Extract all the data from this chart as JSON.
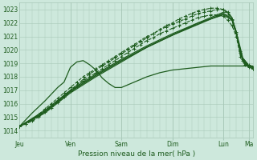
{
  "xlabel": "Pression niveau de la mer( hPa )",
  "ylim": [
    1013.5,
    1023.5
  ],
  "yticks": [
    1014,
    1015,
    1016,
    1017,
    1018,
    1019,
    1020,
    1021,
    1022,
    1023
  ],
  "day_labels": [
    "Jeu",
    "Ven",
    "Sam",
    "Dim",
    "Lun",
    "Ma"
  ],
  "day_positions": [
    0,
    48,
    96,
    144,
    192,
    216
  ],
  "bg_color": "#cde8dc",
  "grid_color": "#a8c8b8",
  "line_color": "#1e5c1e",
  "total_hours": 220,
  "lines": [
    {
      "points": [
        [
          0,
          1014.3
        ],
        [
          6,
          1014.5
        ],
        [
          12,
          1014.8
        ],
        [
          18,
          1015.1
        ],
        [
          24,
          1015.5
        ],
        [
          30,
          1015.8
        ],
        [
          36,
          1016.2
        ],
        [
          42,
          1016.6
        ],
        [
          48,
          1017.0
        ],
        [
          54,
          1017.4
        ],
        [
          60,
          1017.8
        ],
        [
          66,
          1018.2
        ],
        [
          72,
          1018.5
        ],
        [
          78,
          1018.8
        ],
        [
          84,
          1019.1
        ],
        [
          90,
          1019.4
        ],
        [
          96,
          1019.7
        ],
        [
          102,
          1020.0
        ],
        [
          108,
          1020.3
        ],
        [
          114,
          1020.6
        ],
        [
          120,
          1020.9
        ],
        [
          126,
          1021.2
        ],
        [
          132,
          1021.5
        ],
        [
          138,
          1021.8
        ],
        [
          144,
          1022.0
        ],
        [
          150,
          1022.3
        ],
        [
          156,
          1022.5
        ],
        [
          162,
          1022.7
        ],
        [
          168,
          1022.9
        ],
        [
          174,
          1023.0
        ],
        [
          180,
          1023.1
        ],
        [
          186,
          1023.1
        ],
        [
          192,
          1023.0
        ],
        [
          196,
          1022.7
        ],
        [
          200,
          1022.2
        ],
        [
          204,
          1021.2
        ],
        [
          208,
          1019.8
        ],
        [
          210,
          1019.2
        ],
        [
          212,
          1019.0
        ],
        [
          216,
          1018.8
        ],
        [
          220,
          1018.6
        ]
      ],
      "style": "dashed_marker",
      "lw": 0.8
    },
    {
      "points": [
        [
          0,
          1014.3
        ],
        [
          6,
          1014.5
        ],
        [
          12,
          1014.7
        ],
        [
          18,
          1015.0
        ],
        [
          24,
          1015.4
        ],
        [
          30,
          1015.7
        ],
        [
          36,
          1016.1
        ],
        [
          42,
          1016.5
        ],
        [
          48,
          1016.9
        ],
        [
          54,
          1017.3
        ],
        [
          60,
          1017.7
        ],
        [
          66,
          1018.0
        ],
        [
          72,
          1018.3
        ],
        [
          78,
          1018.6
        ],
        [
          84,
          1018.9
        ],
        [
          90,
          1019.2
        ],
        [
          96,
          1019.5
        ],
        [
          102,
          1019.8
        ],
        [
          108,
          1020.1
        ],
        [
          114,
          1020.4
        ],
        [
          120,
          1020.7
        ],
        [
          126,
          1020.9
        ],
        [
          132,
          1021.2
        ],
        [
          138,
          1021.4
        ],
        [
          144,
          1021.6
        ],
        [
          150,
          1021.8
        ],
        [
          156,
          1022.0
        ],
        [
          162,
          1022.2
        ],
        [
          168,
          1022.4
        ],
        [
          174,
          1022.5
        ],
        [
          180,
          1022.6
        ],
        [
          186,
          1022.6
        ],
        [
          192,
          1022.5
        ],
        [
          196,
          1022.2
        ],
        [
          200,
          1021.8
        ],
        [
          204,
          1021.0
        ],
        [
          208,
          1019.5
        ],
        [
          212,
          1018.9
        ],
        [
          216,
          1018.7
        ],
        [
          220,
          1018.6
        ]
      ],
      "style": "dashed_marker",
      "lw": 0.8
    },
    {
      "points": [
        [
          0,
          1014.3
        ],
        [
          24,
          1015.3
        ],
        [
          48,
          1016.8
        ],
        [
          72,
          1018.0
        ],
        [
          96,
          1019.1
        ],
        [
          120,
          1020.2
        ],
        [
          144,
          1021.1
        ],
        [
          168,
          1022.0
        ],
        [
          192,
          1022.6
        ],
        [
          200,
          1022.2
        ],
        [
          204,
          1021.2
        ],
        [
          210,
          1019.3
        ],
        [
          216,
          1018.7
        ],
        [
          220,
          1018.6
        ]
      ],
      "style": "solid",
      "lw": 0.9
    },
    {
      "points": [
        [
          0,
          1014.3
        ],
        [
          24,
          1015.5
        ],
        [
          48,
          1017.0
        ],
        [
          72,
          1018.2
        ],
        [
          96,
          1019.3
        ],
        [
          120,
          1020.3
        ],
        [
          144,
          1021.2
        ],
        [
          168,
          1022.0
        ],
        [
          192,
          1022.8
        ],
        [
          196,
          1022.8
        ],
        [
          200,
          1022.4
        ],
        [
          204,
          1021.3
        ],
        [
          208,
          1019.6
        ],
        [
          212,
          1019.0
        ],
        [
          216,
          1018.8
        ],
        [
          220,
          1018.7
        ]
      ],
      "style": "solid",
      "lw": 0.9
    },
    {
      "points": [
        [
          0,
          1014.3
        ],
        [
          12,
          1015.3
        ],
        [
          24,
          1016.2
        ],
        [
          36,
          1017.2
        ],
        [
          42,
          1017.6
        ],
        [
          48,
          1018.7
        ],
        [
          54,
          1019.1
        ],
        [
          60,
          1019.2
        ],
        [
          66,
          1018.9
        ],
        [
          72,
          1018.5
        ],
        [
          78,
          1017.9
        ],
        [
          84,
          1017.5
        ],
        [
          90,
          1017.2
        ],
        [
          96,
          1017.2
        ],
        [
          102,
          1017.4
        ],
        [
          108,
          1017.6
        ],
        [
          114,
          1017.8
        ],
        [
          120,
          1018.0
        ],
        [
          132,
          1018.3
        ],
        [
          144,
          1018.5
        ],
        [
          156,
          1018.6
        ],
        [
          168,
          1018.7
        ],
        [
          180,
          1018.8
        ],
        [
          192,
          1018.8
        ],
        [
          204,
          1018.8
        ],
        [
          216,
          1018.8
        ],
        [
          220,
          1018.8
        ]
      ],
      "style": "solid",
      "lw": 0.9
    },
    {
      "points": [
        [
          0,
          1014.3
        ],
        [
          6,
          1014.5
        ],
        [
          12,
          1014.8
        ],
        [
          18,
          1015.2
        ],
        [
          24,
          1015.6
        ],
        [
          30,
          1016.0
        ],
        [
          36,
          1016.4
        ],
        [
          42,
          1016.8
        ],
        [
          48,
          1017.2
        ],
        [
          54,
          1017.6
        ],
        [
          60,
          1018.0
        ],
        [
          66,
          1018.3
        ],
        [
          72,
          1018.6
        ],
        [
          78,
          1018.9
        ],
        [
          84,
          1019.2
        ],
        [
          90,
          1019.5
        ],
        [
          96,
          1019.8
        ],
        [
          102,
          1020.1
        ],
        [
          108,
          1020.4
        ],
        [
          114,
          1020.7
        ],
        [
          120,
          1021.0
        ],
        [
          126,
          1021.2
        ],
        [
          132,
          1021.5
        ],
        [
          138,
          1021.7
        ],
        [
          144,
          1021.9
        ],
        [
          150,
          1022.1
        ],
        [
          156,
          1022.3
        ],
        [
          162,
          1022.5
        ],
        [
          168,
          1022.7
        ],
        [
          174,
          1022.8
        ],
        [
          180,
          1022.9
        ],
        [
          186,
          1023.0
        ],
        [
          192,
          1023.0
        ],
        [
          196,
          1022.8
        ],
        [
          200,
          1022.3
        ],
        [
          204,
          1021.3
        ],
        [
          208,
          1019.9
        ],
        [
          210,
          1019.3
        ],
        [
          212,
          1019.1
        ],
        [
          216,
          1018.9
        ],
        [
          220,
          1018.7
        ]
      ],
      "style": "dashed_marker",
      "lw": 0.8
    },
    {
      "points": [
        [
          0,
          1014.3
        ],
        [
          24,
          1015.4
        ],
        [
          48,
          1016.9
        ],
        [
          72,
          1018.1
        ],
        [
          96,
          1019.2
        ],
        [
          120,
          1020.2
        ],
        [
          144,
          1021.1
        ],
        [
          168,
          1021.9
        ],
        [
          192,
          1022.7
        ],
        [
          200,
          1022.3
        ],
        [
          204,
          1021.3
        ],
        [
          210,
          1019.4
        ],
        [
          216,
          1018.8
        ],
        [
          220,
          1018.7
        ]
      ],
      "style": "solid",
      "lw": 1.2
    }
  ]
}
